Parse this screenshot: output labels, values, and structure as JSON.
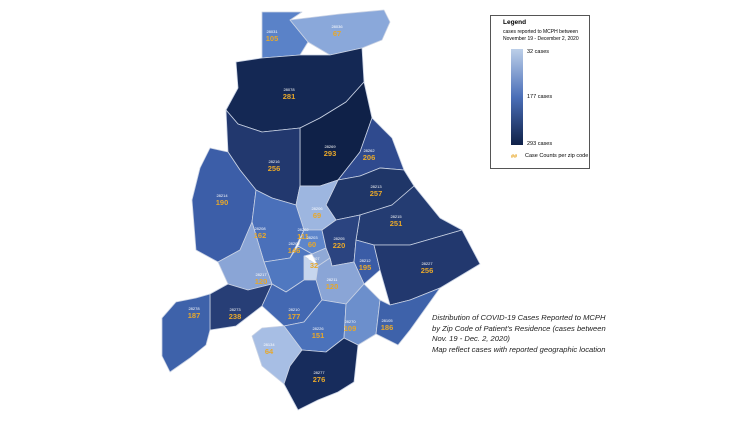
{
  "legend": {
    "title": "Legend",
    "subtitle": "cases reported to MCPH between November 19 - December 2, 2020",
    "max_label": "32 cases",
    "mid_label": "177 cases",
    "min_label": "293 cases",
    "key_symbol": "##",
    "key_text": "Case Counts per zip code",
    "colors": {
      "low": "#bccfe9",
      "mid": "#4b6fb8",
      "high": "#0f2148"
    }
  },
  "caption": {
    "line1": "Distribution of COVID-19 Cases Reported to MCPH by Zip Code of Patient's Residence (cases  between Nov. 19 - Dec. 2, 2020)",
    "line2": "Map reflect cases with reported geographic location"
  },
  "zips": [
    {
      "zip": "28031",
      "count": "105",
      "color": "#5a82c8"
    },
    {
      "zip": "28036",
      "count": "67",
      "color": "#8aa8da"
    },
    {
      "zip": "28078",
      "count": "281",
      "color": "#142854"
    },
    {
      "zip": "28216",
      "count": "256",
      "color": "#22386e"
    },
    {
      "zip": "28269",
      "count": "293",
      "color": "#0f2148"
    },
    {
      "zip": "28262",
      "count": "206",
      "color": "#2f4a8e"
    },
    {
      "zip": "28213",
      "count": "257",
      "color": "#1f3668"
    },
    {
      "zip": "28214",
      "count": "190",
      "color": "#3c5ea8"
    },
    {
      "zip": "28208",
      "count": "162",
      "color": "#4a70ba"
    },
    {
      "zip": "28206",
      "count": "69",
      "color": "#9db6e0"
    },
    {
      "zip": "28215",
      "count": "251",
      "color": "#243c72"
    },
    {
      "zip": "28202",
      "count": "111",
      "color": "#5e86cb"
    },
    {
      "zip": "28203",
      "count": "60",
      "color": "#8fa9d6"
    },
    {
      "zip": "28205",
      "count": "220",
      "color": "#2b4480"
    },
    {
      "zip": "28212",
      "count": "195",
      "color": "#3b5ca6"
    },
    {
      "zip": "28227",
      "count": "256",
      "color": "#22386e"
    },
    {
      "zip": "28207",
      "count": "32",
      "color": "#c6d6ee"
    },
    {
      "zip": "28209",
      "count": "146",
      "color": "#5078c0"
    },
    {
      "zip": "28217",
      "count": "120",
      "color": "#8aa5d6"
    },
    {
      "zip": "28211",
      "count": "120",
      "color": "#8aa5d6"
    },
    {
      "zip": "28273",
      "count": "238",
      "color": "#273e76"
    },
    {
      "zip": "28210",
      "count": "177",
      "color": "#4368b2"
    },
    {
      "zip": "28226",
      "count": "151",
      "color": "#4b72bb"
    },
    {
      "zip": "28270",
      "count": "109",
      "color": "#6c8fcc"
    },
    {
      "zip": "28105",
      "count": "186",
      "color": "#3e62aa"
    },
    {
      "zip": "28278",
      "count": "187",
      "color": "#3e62aa"
    },
    {
      "zip": "28134",
      "count": "64",
      "color": "#a7bee4"
    },
    {
      "zip": "28277",
      "count": "276",
      "color": "#172c5c"
    }
  ]
}
